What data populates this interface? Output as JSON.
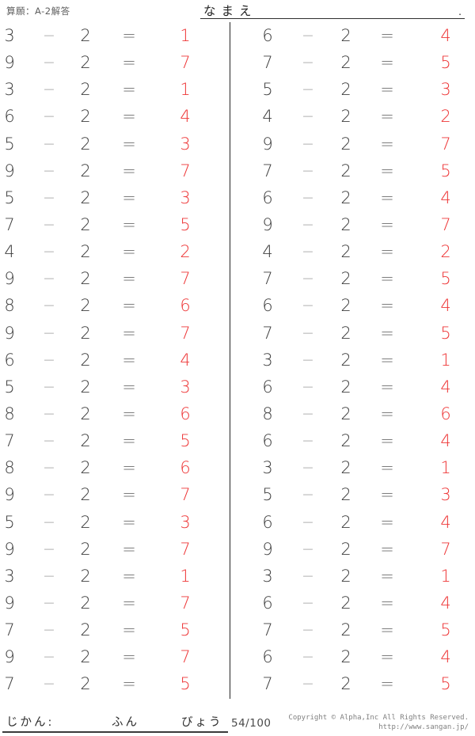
{
  "header": {
    "worksheet_label": "算願：A-2解答",
    "name_label": "なまえ",
    "name_line_end_mark": "."
  },
  "problems": {
    "operator": "−",
    "equals": "=",
    "left": [
      {
        "minuend": 3,
        "subtrahend": 2,
        "answer": 1
      },
      {
        "minuend": 9,
        "subtrahend": 2,
        "answer": 7
      },
      {
        "minuend": 3,
        "subtrahend": 2,
        "answer": 1
      },
      {
        "minuend": 6,
        "subtrahend": 2,
        "answer": 4
      },
      {
        "minuend": 5,
        "subtrahend": 2,
        "answer": 3
      },
      {
        "minuend": 9,
        "subtrahend": 2,
        "answer": 7
      },
      {
        "minuend": 5,
        "subtrahend": 2,
        "answer": 3
      },
      {
        "minuend": 7,
        "subtrahend": 2,
        "answer": 5
      },
      {
        "minuend": 4,
        "subtrahend": 2,
        "answer": 2
      },
      {
        "minuend": 9,
        "subtrahend": 2,
        "answer": 7
      },
      {
        "minuend": 8,
        "subtrahend": 2,
        "answer": 6
      },
      {
        "minuend": 9,
        "subtrahend": 2,
        "answer": 7
      },
      {
        "minuend": 6,
        "subtrahend": 2,
        "answer": 4
      },
      {
        "minuend": 5,
        "subtrahend": 2,
        "answer": 3
      },
      {
        "minuend": 8,
        "subtrahend": 2,
        "answer": 6
      },
      {
        "minuend": 7,
        "subtrahend": 2,
        "answer": 5
      },
      {
        "minuend": 8,
        "subtrahend": 2,
        "answer": 6
      },
      {
        "minuend": 9,
        "subtrahend": 2,
        "answer": 7
      },
      {
        "minuend": 5,
        "subtrahend": 2,
        "answer": 3
      },
      {
        "minuend": 9,
        "subtrahend": 2,
        "answer": 7
      },
      {
        "minuend": 3,
        "subtrahend": 2,
        "answer": 1
      },
      {
        "minuend": 9,
        "subtrahend": 2,
        "answer": 7
      },
      {
        "minuend": 7,
        "subtrahend": 2,
        "answer": 5
      },
      {
        "minuend": 9,
        "subtrahend": 2,
        "answer": 7
      },
      {
        "minuend": 7,
        "subtrahend": 2,
        "answer": 5
      }
    ],
    "right": [
      {
        "minuend": 6,
        "subtrahend": 2,
        "answer": 4
      },
      {
        "minuend": 7,
        "subtrahend": 2,
        "answer": 5
      },
      {
        "minuend": 5,
        "subtrahend": 2,
        "answer": 3
      },
      {
        "minuend": 4,
        "subtrahend": 2,
        "answer": 2
      },
      {
        "minuend": 9,
        "subtrahend": 2,
        "answer": 7
      },
      {
        "minuend": 7,
        "subtrahend": 2,
        "answer": 5
      },
      {
        "minuend": 6,
        "subtrahend": 2,
        "answer": 4
      },
      {
        "minuend": 9,
        "subtrahend": 2,
        "answer": 7
      },
      {
        "minuend": 4,
        "subtrahend": 2,
        "answer": 2
      },
      {
        "minuend": 7,
        "subtrahend": 2,
        "answer": 5
      },
      {
        "minuend": 6,
        "subtrahend": 2,
        "answer": 4
      },
      {
        "minuend": 7,
        "subtrahend": 2,
        "answer": 5
      },
      {
        "minuend": 3,
        "subtrahend": 2,
        "answer": 1
      },
      {
        "minuend": 6,
        "subtrahend": 2,
        "answer": 4
      },
      {
        "minuend": 8,
        "subtrahend": 2,
        "answer": 6
      },
      {
        "minuend": 6,
        "subtrahend": 2,
        "answer": 4
      },
      {
        "minuend": 3,
        "subtrahend": 2,
        "answer": 1
      },
      {
        "minuend": 5,
        "subtrahend": 2,
        "answer": 3
      },
      {
        "minuend": 6,
        "subtrahend": 2,
        "answer": 4
      },
      {
        "minuend": 9,
        "subtrahend": 2,
        "answer": 7
      },
      {
        "minuend": 3,
        "subtrahend": 2,
        "answer": 1
      },
      {
        "minuend": 6,
        "subtrahend": 2,
        "answer": 4
      },
      {
        "minuend": 7,
        "subtrahend": 2,
        "answer": 5
      },
      {
        "minuend": 6,
        "subtrahend": 2,
        "answer": 4
      },
      {
        "minuend": 7,
        "subtrahend": 2,
        "answer": 5
      }
    ]
  },
  "footer": {
    "time_label": "じかん:",
    "minutes_label": "ふん",
    "seconds_label": "びょう",
    "score": "54/100",
    "copyright_line1": "Copyright © Alpha,Inc All Rights Reserved.",
    "copyright_line2": "http://www.sangan.jp/"
  },
  "colors": {
    "answer_red": "#ee3637",
    "digit_dark": "#3e3e3e",
    "minus_gray": "#999999",
    "equals_gray": "#6b6b6b"
  }
}
